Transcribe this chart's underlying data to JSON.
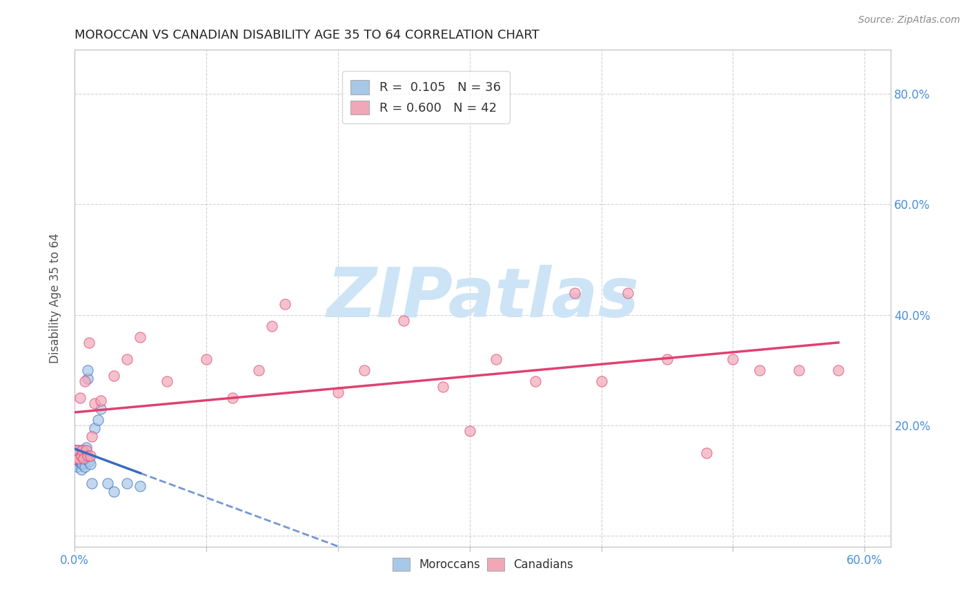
{
  "title": "MOROCCAN VS CANADIAN DISABILITY AGE 35 TO 64 CORRELATION CHART",
  "source": "Source: ZipAtlas.com",
  "ylabel": "Disability Age 35 to 64",
  "xlim": [
    0.0,
    0.62
  ],
  "ylim": [
    -0.02,
    0.88
  ],
  "xticks": [
    0.0,
    0.1,
    0.2,
    0.3,
    0.4,
    0.5,
    0.6
  ],
  "xticklabels": [
    "0.0%",
    "",
    "",
    "",
    "",
    "",
    "60.0%"
  ],
  "yticks": [
    0.0,
    0.2,
    0.4,
    0.6,
    0.8
  ],
  "yticklabels": [
    "",
    "20.0%",
    "40.0%",
    "60.0%",
    "80.0%"
  ],
  "moroccan_R": 0.105,
  "moroccan_N": 36,
  "canadian_R": 0.6,
  "canadian_N": 42,
  "moroccan_color": "#a8c8e8",
  "canadian_color": "#f0a8b8",
  "moroccan_line_color": "#3a6abf",
  "canadian_line_color": "#e04070",
  "moroccan_scatter_edge": "#3a6abf",
  "canadian_scatter_edge": "#e04070",
  "legend_moroccan_label": "R =  0.105   N = 36",
  "legend_canadian_label": "R = 0.600   N = 42",
  "moroccan_x": [
    0.0,
    0.0,
    0.0,
    0.001,
    0.001,
    0.001,
    0.002,
    0.002,
    0.003,
    0.003,
    0.003,
    0.004,
    0.004,
    0.005,
    0.005,
    0.005,
    0.006,
    0.006,
    0.007,
    0.007,
    0.008,
    0.008,
    0.009,
    0.009,
    0.01,
    0.01,
    0.011,
    0.012,
    0.013,
    0.015,
    0.018,
    0.02,
    0.025,
    0.03,
    0.04,
    0.05
  ],
  "moroccan_y": [
    0.14,
    0.145,
    0.15,
    0.13,
    0.14,
    0.155,
    0.125,
    0.145,
    0.135,
    0.15,
    0.155,
    0.135,
    0.15,
    0.12,
    0.135,
    0.155,
    0.13,
    0.145,
    0.14,
    0.155,
    0.125,
    0.14,
    0.145,
    0.16,
    0.285,
    0.3,
    0.135,
    0.13,
    0.095,
    0.195,
    0.21,
    0.23,
    0.095,
    0.08,
    0.095,
    0.09
  ],
  "canadian_x": [
    0.0,
    0.0,
    0.001,
    0.002,
    0.003,
    0.004,
    0.005,
    0.006,
    0.007,
    0.008,
    0.009,
    0.01,
    0.011,
    0.012,
    0.013,
    0.015,
    0.02,
    0.03,
    0.04,
    0.05,
    0.07,
    0.1,
    0.12,
    0.14,
    0.15,
    0.16,
    0.2,
    0.22,
    0.25,
    0.28,
    0.3,
    0.32,
    0.35,
    0.38,
    0.4,
    0.42,
    0.45,
    0.48,
    0.5,
    0.52,
    0.55,
    0.58
  ],
  "canadian_y": [
    0.14,
    0.155,
    0.14,
    0.155,
    0.14,
    0.25,
    0.145,
    0.155,
    0.14,
    0.28,
    0.155,
    0.145,
    0.35,
    0.145,
    0.18,
    0.24,
    0.245,
    0.29,
    0.32,
    0.36,
    0.28,
    0.32,
    0.25,
    0.3,
    0.38,
    0.42,
    0.26,
    0.3,
    0.39,
    0.27,
    0.19,
    0.32,
    0.28,
    0.44,
    0.28,
    0.44,
    0.32,
    0.15,
    0.32,
    0.3,
    0.3,
    0.3
  ],
  "background_color": "#ffffff",
  "grid_color": "#cccccc",
  "watermark_text": "ZIPatlas",
  "watermark_color": "#cce4f5",
  "tick_label_color": "#4a90d9",
  "axis_label_color": "#555555"
}
